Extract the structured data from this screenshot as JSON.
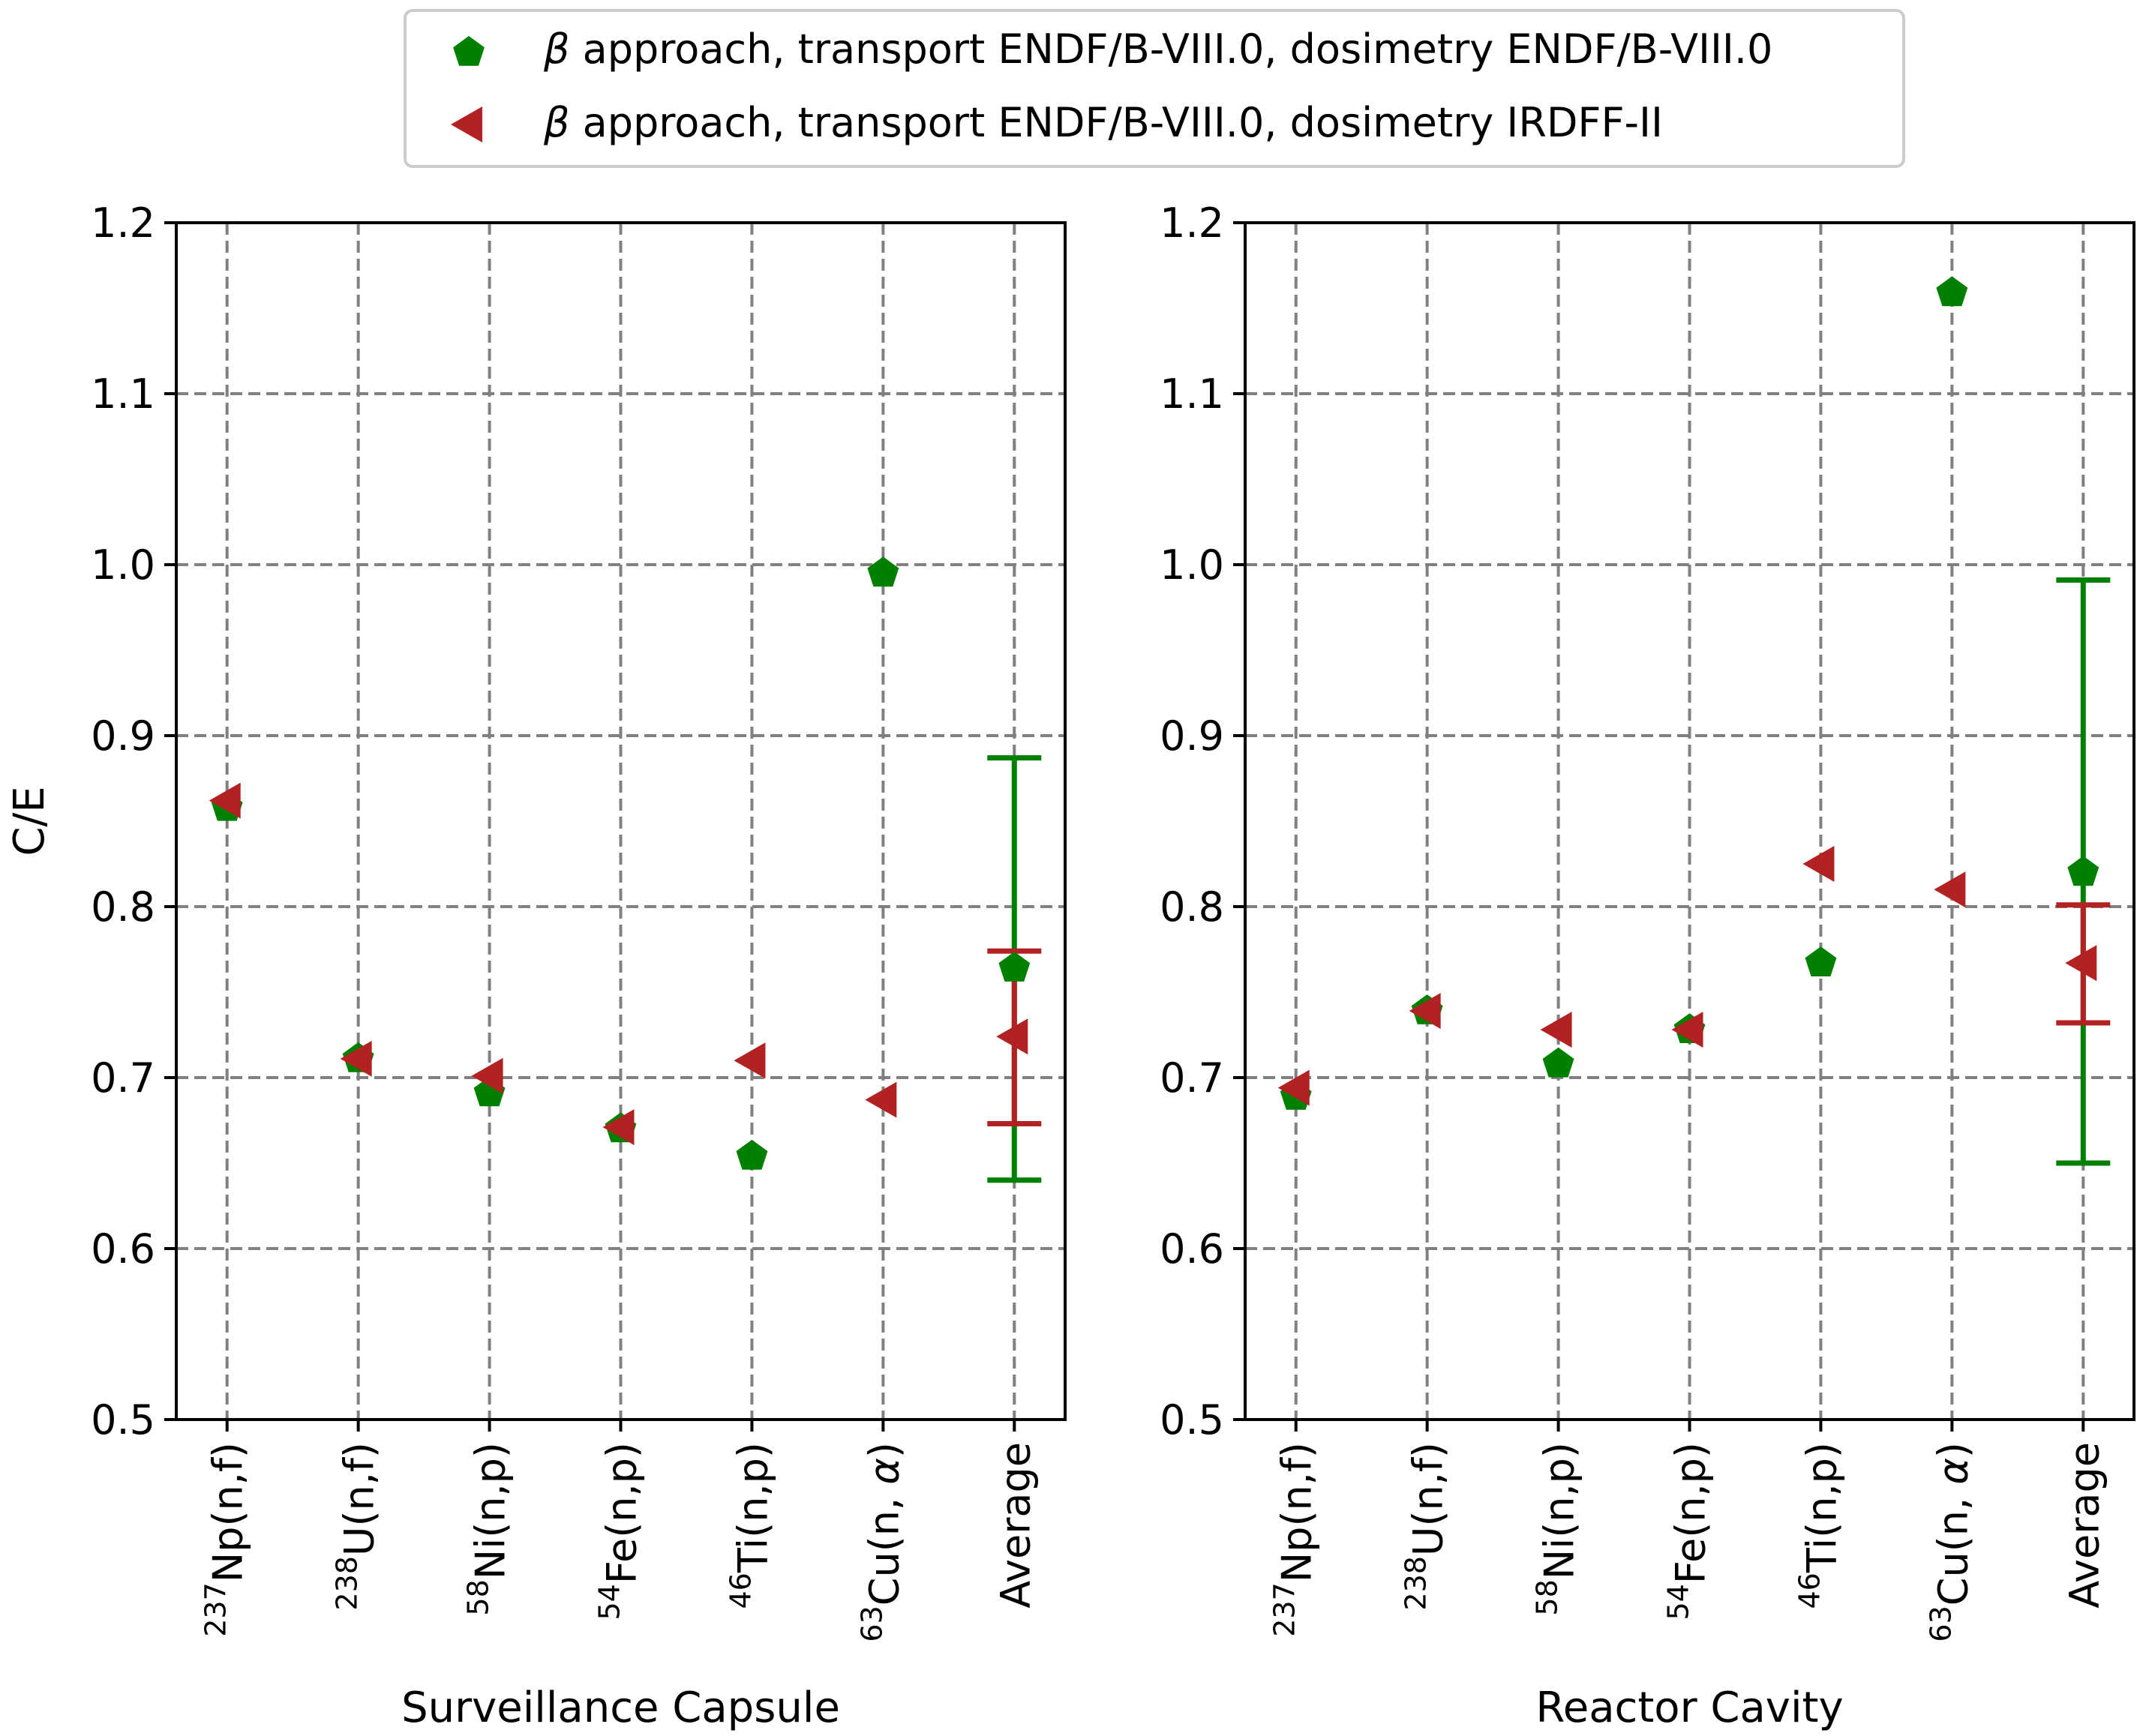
{
  "legend": {
    "items": [
      {
        "greek": "β",
        "text": " approach, transport ENDF/B-VIII.0, dosimetry ENDF/B-VIII.0",
        "marker": "pentagon",
        "color": "#008000"
      },
      {
        "greek": "β",
        "text": " approach, transport ENDF/B-VIII.0, dosimetry IRDFF-II",
        "marker": "triangle-left",
        "color": "#b22222"
      }
    ]
  },
  "categories": [
    {
      "mass": "237",
      "rest": "Np(n,f)",
      "alpha": false
    },
    {
      "mass": "238",
      "rest": "U(n,f)",
      "alpha": false
    },
    {
      "mass": "58",
      "rest": "Ni(n,p)",
      "alpha": false
    },
    {
      "mass": "54",
      "rest": "Fe(n,p)",
      "alpha": false
    },
    {
      "mass": "46",
      "rest": "Ti(n,p)",
      "alpha": false
    },
    {
      "mass": "63",
      "rest": "Cu(n, ",
      "alpha": true
    },
    {
      "mass": "",
      "rest": "Average",
      "alpha": false
    }
  ],
  "alpha_symbol": "α",
  "chart_data": [
    {
      "type": "scatter",
      "title": "",
      "xlabel": "Surveillance Capsule",
      "ylabel": "C/E",
      "ylim": [
        0.5,
        1.2
      ],
      "yticks": [
        "0.5",
        "0.6",
        "0.7",
        "0.8",
        "0.9",
        "1.0",
        "1.1",
        "1.2"
      ],
      "grid": true,
      "series": [
        {
          "name": "β approach, transport ENDF/B-VIII.0, dosimetry ENDF/B-VIII.0",
          "color": "#008000",
          "marker": "pentagon",
          "values": [
            0.858,
            0.711,
            0.691,
            0.67,
            0.654,
            0.995,
            0.764
          ],
          "error": {
            "index": 6,
            "low": 0.64,
            "high": 0.887
          }
        },
        {
          "name": "β approach, transport ENDF/B-VIII.0, dosimetry IRDFF-II",
          "color": "#b22222",
          "marker": "triangle-left",
          "values": [
            0.862,
            0.711,
            0.701,
            0.671,
            0.71,
            0.687,
            0.724
          ],
          "error": {
            "index": 6,
            "low": 0.673,
            "high": 0.774
          }
        }
      ]
    },
    {
      "type": "scatter",
      "title": "",
      "xlabel": "Reactor Cavity",
      "ylabel": "",
      "ylim": [
        0.5,
        1.2
      ],
      "yticks": [
        "0.5",
        "0.6",
        "0.7",
        "0.8",
        "0.9",
        "1.0",
        "1.1",
        "1.2"
      ],
      "grid": true,
      "series": [
        {
          "name": "β approach, transport ENDF/B-VIII.0, dosimetry ENDF/B-VIII.0",
          "color": "#008000",
          "marker": "pentagon",
          "values": [
            0.689,
            0.739,
            0.708,
            0.728,
            0.767,
            1.159,
            0.82
          ],
          "error": {
            "index": 6,
            "low": 0.65,
            "high": 0.991
          }
        },
        {
          "name": "β approach, transport ENDF/B-VIII.0, dosimetry IRDFF-II",
          "color": "#b22222",
          "marker": "triangle-left",
          "values": [
            0.694,
            0.739,
            0.728,
            0.728,
            0.825,
            0.81,
            0.767
          ],
          "error": {
            "index": 6,
            "low": 0.732,
            "high": 0.801
          }
        }
      ]
    }
  ]
}
